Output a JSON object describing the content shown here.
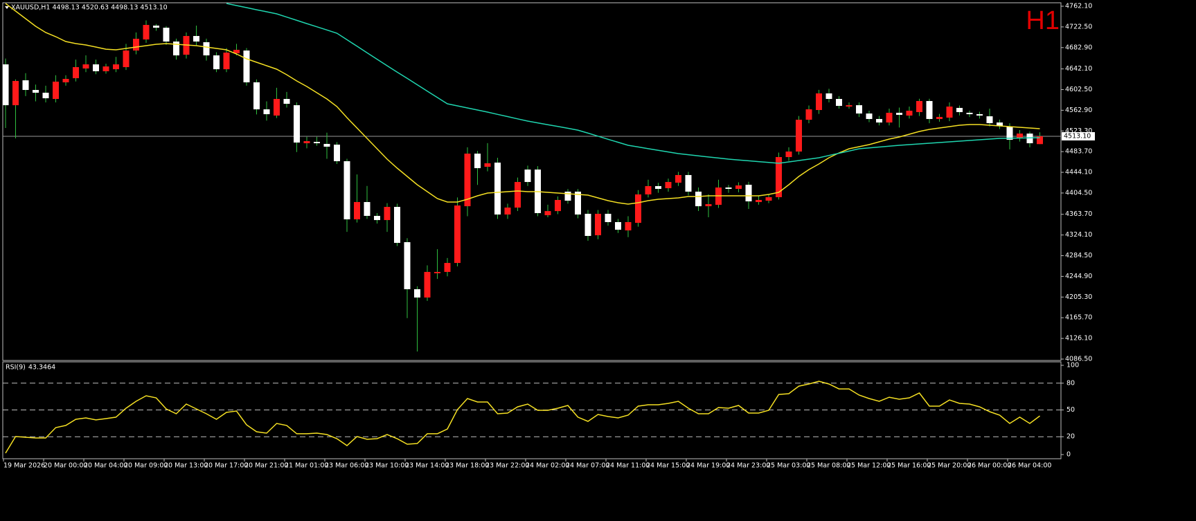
{
  "chart_data": [
    {
      "type": "candlestick",
      "header": "XAUUSD,H1  4498.13 4520.63 4498.13 4513.10",
      "timeframe_label": "H1",
      "categories": [
        "19 Mar 2026",
        null,
        null,
        null,
        "20 Mar 00:00",
        null,
        null,
        null,
        "20 Mar 04:00",
        null,
        null,
        null,
        "20 Mar 09:00",
        null,
        null,
        null,
        "20 Mar 13:00",
        null,
        null,
        null,
        "20 Mar 17:00",
        null,
        null,
        null,
        "20 Mar 21:00",
        null,
        null,
        null,
        "21 Mar 01:00",
        null,
        null,
        null,
        "23 Mar 06:00",
        null,
        null,
        null,
        "23 Mar 10:00",
        null,
        null,
        null,
        "23 Mar 14:00",
        null,
        null,
        null,
        "23 Mar 18:00",
        null,
        null,
        null,
        "23 Mar 22:00",
        null,
        null,
        null,
        "24 Mar 02:00",
        null,
        null,
        null,
        "24 Mar 07:00",
        null,
        null,
        null,
        "24 Mar 11:00",
        null,
        null,
        null,
        "24 Mar 15:00",
        null,
        null,
        null,
        "24 Mar 19:00",
        null,
        null,
        null,
        "24 Mar 23:00",
        null,
        null,
        null,
        "25 Mar 03:00",
        null,
        null,
        null,
        "25 Mar 08:00",
        null,
        null,
        null,
        "25 Mar 12:00",
        null,
        null,
        null,
        "25 Mar 16:00",
        null,
        null,
        null,
        "25 Mar 20:00",
        null,
        null,
        null,
        "26 Mar 00:00",
        null,
        null,
        null,
        "26 Mar 04:00",
        null,
        null,
        null
      ],
      "open": [
        4650.8,
        4572.6,
        4620.3,
        4601.8,
        4596.5,
        4584.6,
        4616.4,
        4624.3,
        4642.9,
        4650.8,
        4637.6,
        4641.5,
        4645.5,
        4677.3,
        4698.5,
        4725.0,
        4721.0,
        4694.5,
        4669.3,
        4705.1,
        4693.2,
        4668.0,
        4641.5,
        4672.0,
        4677.3,
        4616.4,
        4564.7,
        4552.8,
        4584.6,
        4572.6,
        4499.8,
        4502.4,
        4498.5,
        4497.1,
        4465.4,
        4354.1,
        4387.2,
        4360.7,
        4352.7,
        4377.9,
        4310.4,
        4220.3,
        4204.4,
        4250.8,
        4253.4,
        4270.6,
        4379.2,
        4479.9,
        4454.7,
        4462.7,
        4363.3,
        4376.6,
        4449.4,
        4449.4,
        4362.0,
        4369.9,
        4407.1,
        4407.1,
        4364.7,
        4323.6,
        4364.7,
        4348.8,
        4332.9,
        4347.4,
        4401.8,
        4417.7,
        4413.7,
        4424.3,
        4438.9,
        4407.1,
        4379.2,
        4381.9,
        4415.0,
        4412.4,
        4420.3,
        4387.2,
        4389.8,
        4396.5,
        4473.3,
        4483.9,
        4544.8,
        4563.4,
        4595.2,
        4584.6,
        4570.0,
        4572.6,
        4556.7,
        4546.2,
        4539.5,
        4558.1,
        4552.8,
        4559.4,
        4580.6,
        4546.2,
        4548.8,
        4567.4,
        4558.1,
        4555.4,
        4551.4,
        4539.5,
        4531.6,
        4509.1,
        4518.3,
        4498.13
      ],
      "high": [
        4662,
        4622,
        4634,
        4612,
        4610,
        4630,
        4630,
        4660,
        4668,
        4660,
        4652,
        4665,
        4690,
        4712,
        4735,
        4728,
        4724,
        4700,
        4712,
        4725,
        4700,
        4674,
        4682,
        4690,
        4682,
        4622,
        4580,
        4606,
        4598,
        4578,
        4512,
        4512,
        4520,
        4502,
        4470,
        4440,
        4418,
        4366,
        4385,
        4384,
        4318,
        4226,
        4266,
        4297,
        4280,
        4396,
        4492,
        4485,
        4500,
        4472,
        4384,
        4434,
        4457,
        4456,
        4382,
        4398,
        4412,
        4412,
        4372,
        4372,
        4372,
        4355,
        4360,
        4410,
        4430,
        4424,
        4432,
        4445,
        4445,
        4415,
        4402,
        4430,
        4420,
        4425,
        4426,
        4400,
        4402,
        4482,
        4492,
        4552,
        4572,
        4602,
        4604,
        4590,
        4578,
        4578,
        4562,
        4552,
        4566,
        4568,
        4570,
        4585,
        4585,
        4556,
        4578,
        4572,
        4562,
        4560,
        4566,
        4545,
        4538,
        4525,
        4522,
        4520.63
      ],
      "low": [
        4529,
        4509,
        4590,
        4580,
        4578,
        4578,
        4610,
        4618,
        4636,
        4632,
        4633,
        4636,
        4640,
        4670,
        4692,
        4715,
        4688,
        4660,
        4662,
        4686,
        4658,
        4636,
        4636,
        4668,
        4610,
        4555,
        4543,
        4548,
        4568,
        4483,
        4490,
        4495,
        4470,
        4460,
        4330,
        4348,
        4355,
        4346,
        4330,
        4303,
        4165,
        4101,
        4198,
        4240,
        4245,
        4264,
        4360,
        4420,
        4446,
        4355,
        4355,
        4370,
        4418,
        4360,
        4358,
        4364,
        4384,
        4356,
        4313,
        4316,
        4342,
        4328,
        4320,
        4340,
        4396,
        4405,
        4407,
        4418,
        4400,
        4370,
        4358,
        4376,
        4405,
        4406,
        4374,
        4382,
        4385,
        4392,
        4466,
        4478,
        4538,
        4556,
        4578,
        4566,
        4566,
        4550,
        4540,
        4534,
        4534,
        4530,
        4547,
        4552,
        4538,
        4541,
        4542,
        4553,
        4550,
        4547,
        4532,
        4527,
        4488,
        4503,
        4492,
        4498.13
      ],
      "close": [
        4572.6,
        4619.0,
        4601.8,
        4596.5,
        4585.9,
        4617.7,
        4623.0,
        4645.5,
        4650.8,
        4637.6,
        4646.8,
        4650.8,
        4677.3,
        4699.8,
        4726.3,
        4721.0,
        4694.5,
        4668.0,
        4705.1,
        4694.5,
        4668.0,
        4641.5,
        4673.3,
        4678.6,
        4616.4,
        4564.7,
        4555.4,
        4584.6,
        4575.3,
        4501.1,
        4503.8,
        4499.8,
        4493.2,
        4465.4,
        4354.1,
        4387.2,
        4360.7,
        4352.7,
        4377.9,
        4309.0,
        4220.3,
        4204.4,
        4253.4,
        4253.4,
        4270.6,
        4380.6,
        4479.9,
        4452.1,
        4461.4,
        4363.3,
        4376.6,
        4425.6,
        4425.6,
        4366.0,
        4369.9,
        4391.2,
        4389.8,
        4363.3,
        4322.3,
        4364.7,
        4348.8,
        4334.2,
        4348.8,
        4401.8,
        4417.7,
        4412.4,
        4425.6,
        4438.9,
        4407.1,
        4379.2,
        4383.2,
        4415.0,
        4412.4,
        4419.0,
        4388.5,
        4391.2,
        4396.5,
        4473.3,
        4483.9,
        4544.8,
        4564.7,
        4595.2,
        4584.6,
        4571.3,
        4572.6,
        4556.7,
        4546.2,
        4539.5,
        4558.1,
        4554.1,
        4562.0,
        4580.6,
        4546.2,
        4550.1,
        4570.0,
        4559.4,
        4555.4,
        4552.8,
        4538.2,
        4532.9,
        4506.4,
        4518.3,
        4499.8,
        4513.1
      ],
      "up_color": "#ff1a1a",
      "down_color": "#ffffff",
      "wick_color": "#2fbf3f",
      "moving_averages": [
        {
          "color": "#f5e023",
          "values": [
            4767.4,
            4752.8,
            4738.2,
            4723.7,
            4711.7,
            4703.8,
            4694.5,
            4690.5,
            4687.9,
            4683.9,
            4679.9,
            4678.6,
            4681.3,
            4683.9,
            4686.6,
            4689.2,
            4690.5,
            4689.2,
            4687.9,
            4686.6,
            4683.9,
            4681.3,
            4678.6,
            4670.7,
            4661.4,
            4654.8,
            4648.2,
            4641.5,
            4630.9,
            4619.0,
            4608.4,
            4596.5,
            4584.6,
            4570.0,
            4548.8,
            4528.9,
            4509.1,
            4489.2,
            4469.3,
            4452.1,
            4436.2,
            4420.3,
            4407.1,
            4393.8,
            4387.2,
            4387.2,
            4392.5,
            4399.1,
            4404.4,
            4405.7,
            4407.1,
            4408.4,
            4407.1,
            4407.1,
            4405.7,
            4404.4,
            4403.1,
            4401.8,
            4400.4,
            4395.1,
            4389.8,
            4385.9,
            4383.2,
            4385.9,
            4389.8,
            4392.5,
            4393.8,
            4395.1,
            4397.8,
            4397.8,
            4399.1,
            4399.1,
            4399.1,
            4399.1,
            4399.1,
            4399.1,
            4401.8,
            4405.7,
            4420.3,
            4436.2,
            4449.4,
            4460.1,
            4472.0,
            4481.2,
            4489.2,
            4493.2,
            4497.1,
            4502.4,
            4507.7,
            4511.7,
            4517.0,
            4522.3,
            4526.3,
            4528.9,
            4531.6,
            4534.2,
            4535.6,
            4535.6,
            4534.2,
            4532.9,
            4531.6,
            4530.3,
            4528.9,
            4527.6
          ]
        },
        {
          "color": "#1fd6b0",
          "values": [
            null,
            null,
            null,
            null,
            null,
            null,
            null,
            null,
            null,
            null,
            null,
            null,
            null,
            null,
            null,
            null,
            null,
            null,
            null,
            null,
            null,
            null,
            4767.4,
            4763.4,
            4759.4,
            4755.4,
            4751.5,
            4747.5,
            4741.3,
            4735.1,
            4728.9,
            4722.8,
            4716.6,
            4710.4,
            4698.0,
            4685.5,
            4673.1,
            4660.6,
            4648.2,
            4636.0,
            4623.9,
            4611.7,
            4599.6,
            4587.4,
            4575.3,
            4571.3,
            4567.4,
            4563.4,
            4559.4,
            4555.1,
            4550.8,
            4546.5,
            4542.2,
            4538.7,
            4535.3,
            4531.8,
            4528.4,
            4524.9,
            4519.1,
            4513.3,
            4507.4,
            4501.6,
            4495.8,
            4492.6,
            4489.4,
            4486.3,
            4483.1,
            4479.9,
            4477.8,
            4475.7,
            4473.5,
            4471.4,
            4469.3,
            4467.7,
            4466.1,
            4464.6,
            4463.0,
            4461.4,
            4464.1,
            4466.7,
            4469.4,
            4472.0,
            4476.3,
            4480.6,
            4484.9,
            4489.2,
            4490.9,
            4492.5,
            4494.2,
            4495.8,
            4497.1,
            4498.5,
            4499.8,
            4501.1,
            4502.5,
            4503.8,
            4505.1,
            4506.4,
            4507.8,
            4509.1,
            4509.4,
            4509.7,
            4510.1,
            4510.4
          ]
        }
      ],
      "ylim": [
        4086.5,
        4762.1
      ],
      "yticks": [
        {
          "value": 4762.1,
          "label": "4762.10"
        },
        {
          "value": 4722.5,
          "label": "4722.50"
        },
        {
          "value": 4682.9,
          "label": "4682.90"
        },
        {
          "value": 4642.1,
          "label": "4642.10"
        },
        {
          "value": 4602.5,
          "label": "4602.50"
        },
        {
          "value": 4562.9,
          "label": "4562.90"
        },
        {
          "value": 4523.3,
          "label": "4523.30"
        },
        {
          "value": 4483.7,
          "label": "4483.70"
        },
        {
          "value": 4444.1,
          "label": "4444.10"
        },
        {
          "value": 4404.5,
          "label": "4404.50"
        },
        {
          "value": 4363.7,
          "label": "4363.70"
        },
        {
          "value": 4324.1,
          "label": "4324.10"
        },
        {
          "value": 4284.5,
          "label": "4284.50"
        },
        {
          "value": 4244.9,
          "label": "4244.90"
        },
        {
          "value": 4205.3,
          "label": "4205.30"
        },
        {
          "value": 4165.7,
          "label": "4165.70"
        },
        {
          "value": 4126.1,
          "label": "4126.10"
        },
        {
          "value": 4086.5,
          "label": "4086.50"
        }
      ],
      "current_price": {
        "value": 4513.1,
        "label": "4513.10"
      }
    },
    {
      "type": "line",
      "title": "RSI(9)",
      "series": [
        {
          "color": "#f5e023",
          "values": [
            1.6,
            20.2,
            19.4,
            18.6,
            18.6,
            30.2,
            32.6,
            39.5,
            41.1,
            38.8,
            40.3,
            41.9,
            51.9,
            59.7,
            65.9,
            63.6,
            51.2,
            45.7,
            56.6,
            51.2,
            45.7,
            39.5,
            47.3,
            48.8,
            33.3,
            25.6,
            24.0,
            34.9,
            32.6,
            23.3,
            23.3,
            24.0,
            22.5,
            17.8,
            10.1,
            20.2,
            17.1,
            17.8,
            22.5,
            17.8,
            11.6,
            12.4,
            23.3,
            23.3,
            28.7,
            50.4,
            62.8,
            58.9,
            58.9,
            45.7,
            46.5,
            53.5,
            56.6,
            49.6,
            49.6,
            51.9,
            55.0,
            41.9,
            37.2,
            45.0,
            42.6,
            41.1,
            44.2,
            54.3,
            55.8,
            55.8,
            57.4,
            59.7,
            51.9,
            45.7,
            45.7,
            52.7,
            51.9,
            55.0,
            46.5,
            46.5,
            49.6,
            67.4,
            68.2,
            76.7,
            79.1,
            82.2,
            79.1,
            73.6,
            73.6,
            66.7,
            62.8,
            59.7,
            64.3,
            62.0,
            63.6,
            69.0,
            54.3,
            54.3,
            61.2,
            57.4,
            56.6,
            53.5,
            48.1,
            44.2,
            34.9,
            41.9,
            34.9,
            43.3464
          ]
        }
      ],
      "ylim": [
        0,
        100
      ],
      "yticks": [
        100,
        80,
        50,
        20,
        0
      ],
      "levels": [
        80,
        50,
        20
      ]
    }
  ]
}
